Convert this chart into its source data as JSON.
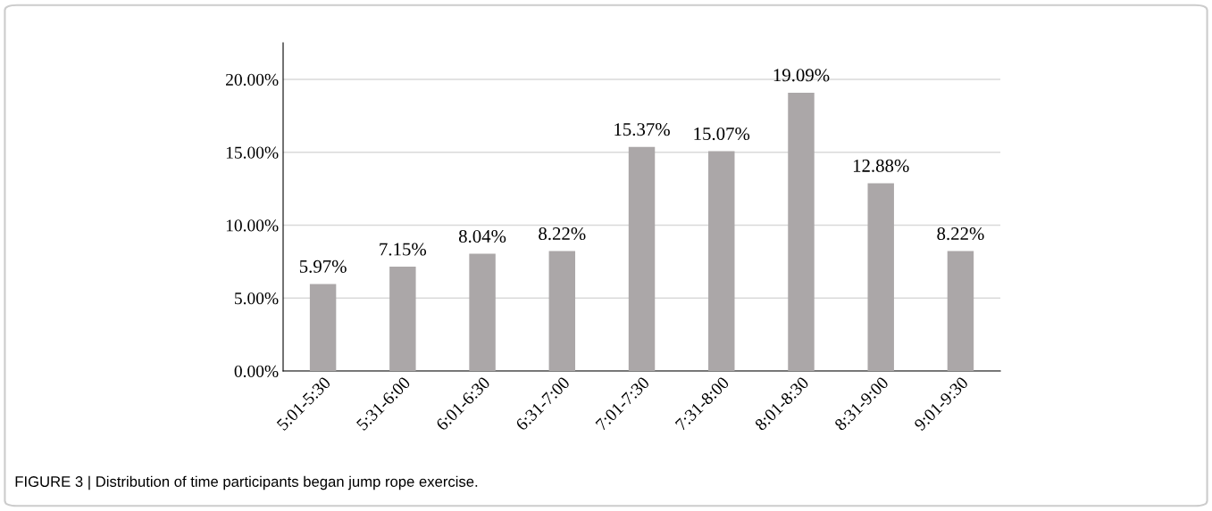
{
  "chart_data": {
    "type": "bar",
    "categories": [
      "5:01-5:30",
      "5:31-6:00",
      "6:01-6:30",
      "6:31-7:00",
      "7:01-7:30",
      "7:31-8:00",
      "8:01-8:30",
      "8:31-9:00",
      "9:01-9:30"
    ],
    "values": [
      5.97,
      7.15,
      8.04,
      8.22,
      15.37,
      15.07,
      19.09,
      12.88,
      8.22
    ],
    "value_labels": [
      "5.97%",
      "7.15%",
      "8.04%",
      "8.22%",
      "15.37%",
      "15.07%",
      "19.09%",
      "12.88%",
      "8.22%"
    ],
    "color": "#aba7a8",
    "ylim": [
      0,
      22.5
    ],
    "yticks": [
      {
        "value": 0,
        "label": "0.00%"
      },
      {
        "value": 5,
        "label": "5.00%"
      },
      {
        "value": 10,
        "label": "10.00%"
      },
      {
        "value": 15,
        "label": "15.00%"
      },
      {
        "value": 20,
        "label": "20.00%"
      }
    ],
    "grid": "y",
    "legend": false,
    "annotations": [
      "FIGURE 3 | Distribution of time participants began jump rope exercise."
    ]
  }
}
